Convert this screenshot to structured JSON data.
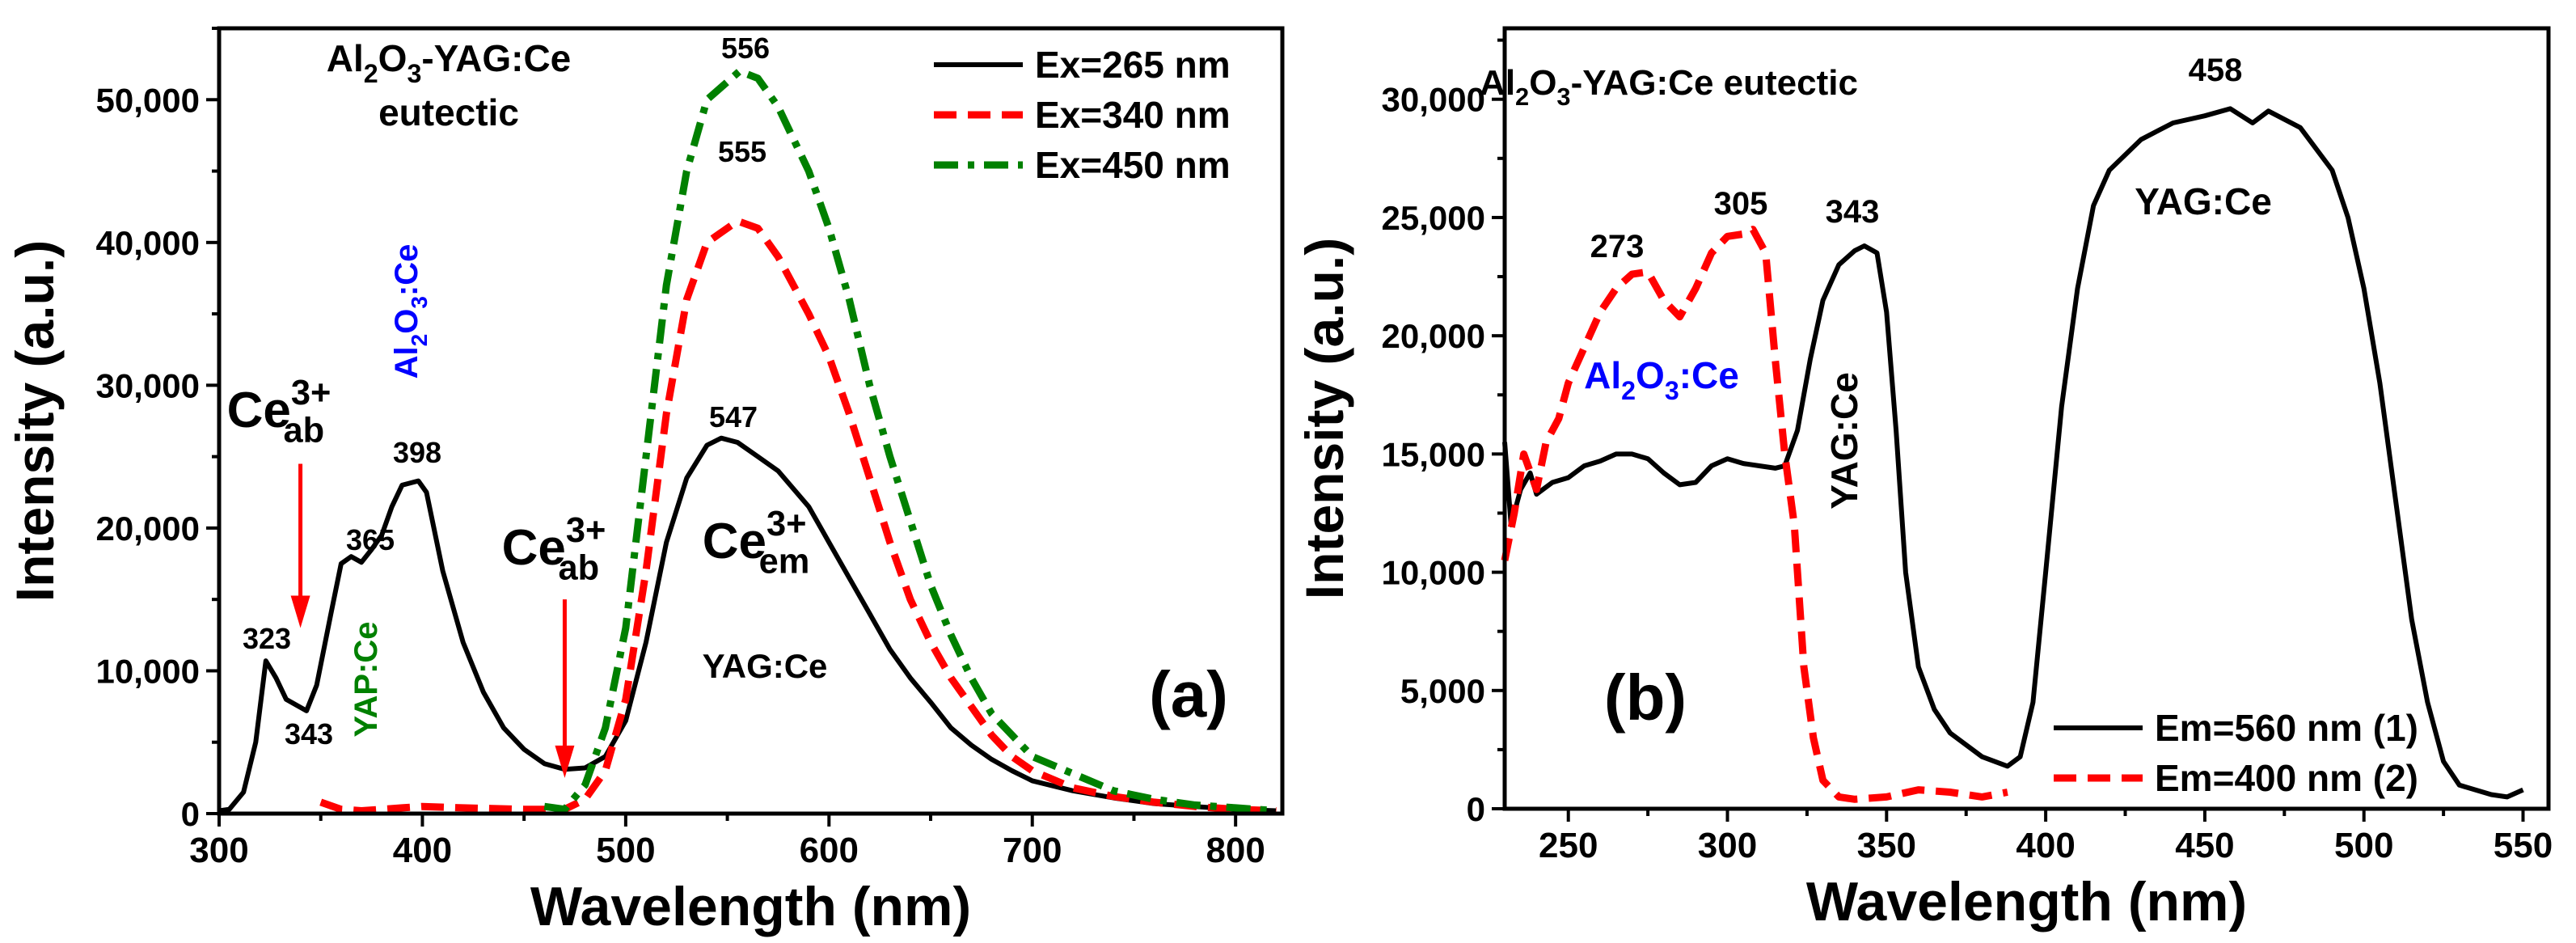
{
  "chart_data": [
    {
      "panel": "(a)",
      "type": "line",
      "xlabel": "Wavelength (nm)",
      "ylabel": "Intensity (a.u.)",
      "xlim": [
        300,
        823
      ],
      "ylim": [
        0,
        55000
      ],
      "xticks": [
        300,
        400,
        500,
        600,
        700,
        800
      ],
      "yticks": [
        0,
        10000,
        20000,
        30000,
        40000,
        50000
      ],
      "xtick_labels": [
        "300",
        "400",
        "500",
        "600",
        "700",
        "800"
      ],
      "ytick_labels": [
        "0",
        "10,000",
        "20,000",
        "30,000",
        "40,000",
        "50,000"
      ],
      "grid": false,
      "legend_position": "top-right",
      "series": [
        {
          "name": "Ex=265 nm",
          "color": "#000000",
          "dash": "solid",
          "x": [
            300,
            305,
            312,
            318,
            323,
            328,
            333,
            343,
            348,
            355,
            360,
            365,
            370,
            375,
            380,
            385,
            390,
            398,
            402,
            410,
            420,
            430,
            440,
            450,
            460,
            470,
            480,
            490,
            500,
            510,
            520,
            530,
            540,
            547,
            555,
            565,
            575,
            590,
            600,
            610,
            620,
            630,
            640,
            650,
            660,
            670,
            680,
            690,
            700,
            720,
            740,
            760,
            780,
            800,
            820
          ],
          "y": [
            200,
            300,
            1500,
            5000,
            10700,
            9500,
            8000,
            7200,
            9000,
            14000,
            17500,
            18000,
            17600,
            18500,
            19500,
            21500,
            23000,
            23300,
            22500,
            17000,
            12000,
            8500,
            6000,
            4500,
            3500,
            3100,
            3200,
            4000,
            6500,
            12000,
            19000,
            23500,
            25800,
            26300,
            26000,
            25000,
            24000,
            21500,
            19000,
            16500,
            14000,
            11500,
            9500,
            7800,
            6000,
            4800,
            3800,
            3000,
            2300,
            1600,
            1100,
            700,
            500,
            300,
            200
          ]
        },
        {
          "name": "Ex=340 nm",
          "color": "#ff0000",
          "dash": "dash",
          "x": [
            350,
            360,
            370,
            390,
            400,
            420,
            450,
            470,
            480,
            490,
            500,
            510,
            520,
            530,
            540,
            555,
            565,
            575,
            590,
            600,
            610,
            620,
            630,
            640,
            650,
            660,
            670,
            680,
            690,
            700,
            720,
            740,
            760,
            780,
            800,
            820
          ],
          "y": [
            800,
            300,
            200,
            400,
            500,
            400,
            300,
            300,
            1000,
            3000,
            8000,
            17000,
            28000,
            36000,
            40000,
            41500,
            41000,
            39000,
            35000,
            32000,
            28000,
            23500,
            19000,
            15000,
            12000,
            9500,
            7500,
            5500,
            4000,
            3000,
            1800,
            1200,
            800,
            500,
            300,
            200
          ]
        },
        {
          "name": "Ex=450 nm",
          "color": "#008000",
          "dash": "dashdot",
          "x": [
            460,
            470,
            480,
            490,
            500,
            510,
            520,
            530,
            540,
            556,
            565,
            575,
            590,
            600,
            610,
            620,
            630,
            640,
            650,
            660,
            670,
            680,
            690,
            700,
            720,
            740,
            760,
            780,
            800,
            820
          ],
          "y": [
            500,
            300,
            2000,
            6000,
            13000,
            25000,
            37000,
            45000,
            50000,
            52000,
            51500,
            49500,
            45000,
            41000,
            36000,
            30000,
            25000,
            20500,
            16000,
            12500,
            9500,
            7000,
            5500,
            4000,
            2800,
            1600,
            1000,
            600,
            400,
            200
          ]
        }
      ],
      "annotations": [
        {
          "id": "title",
          "parts": [
            {
              "t": "Al"
            },
            {
              "t": "2",
              "s": "sub"
            },
            {
              "t": "O"
            },
            {
              "t": "3",
              "s": "sub"
            },
            {
              "t": "-YAG:Ce"
            }
          ],
          "color": "#000000"
        },
        {
          "id": "title2",
          "parts": [
            {
              "t": "eutectic"
            }
          ],
          "color": "#000000"
        },
        {
          "id": "p556",
          "parts": [
            {
              "t": "556"
            }
          ],
          "color": "#000000"
        },
        {
          "id": "p555",
          "parts": [
            {
              "t": "555"
            }
          ],
          "color": "#000000"
        },
        {
          "id": "p547",
          "parts": [
            {
              "t": "547"
            }
          ],
          "color": "#000000"
        },
        {
          "id": "p398",
          "parts": [
            {
              "t": "398"
            }
          ],
          "color": "#000000"
        },
        {
          "id": "p365",
          "parts": [
            {
              "t": "365"
            }
          ],
          "color": "#000000"
        },
        {
          "id": "p323",
          "parts": [
            {
              "t": "323"
            }
          ],
          "color": "#000000"
        },
        {
          "id": "p343",
          "parts": [
            {
              "t": "343"
            }
          ],
          "color": "#000000"
        },
        {
          "id": "ceab1",
          "parts": [
            {
              "t": "Ce"
            },
            {
              "t": "3+",
              "s": "sup"
            },
            {
              "t": "ab",
              "s": "sub"
            }
          ],
          "color": "#000000"
        },
        {
          "id": "ceab2",
          "parts": [
            {
              "t": "Ce"
            },
            {
              "t": "3+",
              "s": "sup"
            },
            {
              "t": "ab",
              "s": "sub"
            }
          ],
          "color": "#000000"
        },
        {
          "id": "ceem",
          "parts": [
            {
              "t": "Ce"
            },
            {
              "t": "3+",
              "s": "sup"
            },
            {
              "t": "em",
              "s": "sub"
            }
          ],
          "color": "#000000"
        },
        {
          "id": "yag",
          "parts": [
            {
              "t": "YAG:Ce"
            }
          ],
          "color": "#000000"
        },
        {
          "id": "yap",
          "parts": [
            {
              "t": "YAP:Ce"
            }
          ],
          "color": "#008000"
        },
        {
          "id": "al2o3",
          "parts": [
            {
              "t": "Al"
            },
            {
              "t": "2",
              "s": "sub"
            },
            {
              "t": "O"
            },
            {
              "t": "3",
              "s": "sub"
            },
            {
              "t": ":Ce"
            }
          ],
          "color": "#0000ff"
        },
        {
          "id": "label",
          "parts": [
            {
              "t": "(a)"
            }
          ],
          "color": "#000000"
        }
      ],
      "arrows": [
        {
          "x": 340,
          "y_from": 24500,
          "y_to": 13000,
          "color": "#ff0000"
        },
        {
          "x": 470,
          "y_from": 15000,
          "y_to": 2500,
          "color": "#ff0000"
        }
      ]
    },
    {
      "panel": "(b)",
      "type": "line",
      "xlabel": "Wavelength (nm)",
      "ylabel": "Intensity (a.u.)",
      "xlim": [
        230,
        558
      ],
      "ylim": [
        0,
        33000
      ],
      "xticks": [
        250,
        300,
        350,
        400,
        450,
        500,
        550
      ],
      "yticks": [
        0,
        5000,
        10000,
        15000,
        20000,
        25000,
        30000
      ],
      "xtick_labels": [
        "250",
        "300",
        "350",
        "400",
        "450",
        "500",
        "550"
      ],
      "ytick_labels": [
        "0",
        "5,000",
        "10,000",
        "15,000",
        "20,000",
        "25,000",
        "30,000"
      ],
      "grid": false,
      "legend_position": "bottom-right",
      "series": [
        {
          "name": "Em=560 nm (1)",
          "color": "#000000",
          "dash": "solid",
          "x": [
            230,
            232,
            235,
            238,
            240,
            245,
            250,
            255,
            260,
            265,
            270,
            275,
            280,
            285,
            290,
            295,
            300,
            305,
            310,
            315,
            318,
            322,
            326,
            330,
            335,
            340,
            343,
            347,
            350,
            353,
            356,
            360,
            365,
            370,
            380,
            388,
            392,
            396,
            400,
            405,
            410,
            415,
            420,
            430,
            440,
            450,
            458,
            465,
            470,
            480,
            490,
            495,
            500,
            505,
            510,
            515,
            520,
            525,
            530,
            540,
            545,
            550
          ],
          "y": [
            15500,
            12000,
            13500,
            14200,
            13300,
            13800,
            14000,
            14500,
            14700,
            15000,
            15000,
            14800,
            14200,
            13700,
            13800,
            14500,
            14800,
            14600,
            14500,
            14400,
            14500,
            16000,
            19000,
            21500,
            23000,
            23600,
            23800,
            23500,
            21000,
            16000,
            10000,
            6000,
            4200,
            3200,
            2200,
            1800,
            2200,
            4500,
            10000,
            17000,
            22000,
            25500,
            27000,
            28300,
            29000,
            29300,
            29600,
            29000,
            29500,
            28800,
            27000,
            25000,
            22000,
            18000,
            13000,
            8000,
            4500,
            2000,
            1000,
            600,
            500,
            800
          ]
        },
        {
          "name": "Em=400 nm (2)",
          "color": "#ff0000",
          "dash": "dash",
          "x": [
            230,
            233,
            236,
            240,
            243,
            247,
            250,
            255,
            260,
            265,
            270,
            275,
            280,
            285,
            290,
            295,
            300,
            305,
            308,
            312,
            315,
            318,
            321,
            324,
            327,
            330,
            335,
            340,
            350,
            360,
            370,
            380,
            388
          ],
          "y": [
            10500,
            12500,
            15000,
            13500,
            15500,
            16500,
            18000,
            19500,
            21000,
            22000,
            22600,
            22700,
            21500,
            20800,
            22000,
            23500,
            24200,
            24300,
            24500,
            23500,
            19000,
            15000,
            12000,
            6000,
            3000,
            1200,
            500,
            400,
            500,
            800,
            700,
            500,
            700
          ]
        }
      ],
      "annotations": [
        {
          "id": "title",
          "parts": [
            {
              "t": "Al"
            },
            {
              "t": "2",
              "s": "sub"
            },
            {
              "t": "O"
            },
            {
              "t": "3",
              "s": "sub"
            },
            {
              "t": "-YAG:Ce eutectic"
            }
          ],
          "color": "#000000"
        },
        {
          "id": "p273",
          "parts": [
            {
              "t": "273"
            }
          ],
          "color": "#000000"
        },
        {
          "id": "p305",
          "parts": [
            {
              "t": "305"
            }
          ],
          "color": "#000000"
        },
        {
          "id": "p343",
          "parts": [
            {
              "t": "343"
            }
          ],
          "color": "#000000"
        },
        {
          "id": "p458",
          "parts": [
            {
              "t": "458"
            }
          ],
          "color": "#000000"
        },
        {
          "id": "yag",
          "parts": [
            {
              "t": "YAG:Ce"
            }
          ],
          "color": "#000000"
        },
        {
          "id": "yagv",
          "parts": [
            {
              "t": "YAG:Ce"
            }
          ],
          "color": "#000000"
        },
        {
          "id": "al2o3",
          "parts": [
            {
              "t": "Al"
            },
            {
              "t": "2",
              "s": "sub"
            },
            {
              "t": "O"
            },
            {
              "t": "3",
              "s": "sub"
            },
            {
              "t": ":Ce"
            }
          ],
          "color": "#0000ff"
        },
        {
          "id": "label",
          "parts": [
            {
              "t": "(b)"
            }
          ],
          "color": "#000000"
        }
      ],
      "arrows": []
    }
  ]
}
